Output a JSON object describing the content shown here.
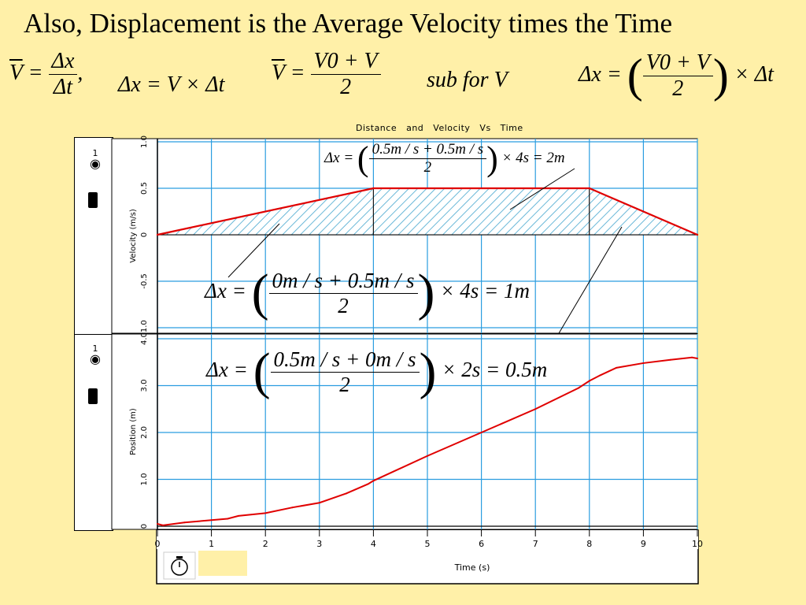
{
  "title": "Also, Displacement is the Average Velocity times the Time",
  "formulas": {
    "f1_lhs": "V",
    "f1_num": "Δx",
    "f1_den": "Δt",
    "f2": "Δx = V × Δt",
    "f3_lhs": "V",
    "f3_num": "V0 + V",
    "f3_den": "2",
    "f4": "sub for V",
    "f5_lhs": "Δx =",
    "f5_num": "V0 + V",
    "f5_den": "2",
    "f5_tail": "× Δt"
  },
  "chart_title": "Distance and Velocity Vs Time",
  "annotations": {
    "a1_lhs": "Δx =",
    "a1_num": "0.5m / s + 0.5m / s",
    "a1_den": "2",
    "a1_tail": "× 4s = 2m",
    "a2_lhs": "Δx =",
    "a2_num": "0m / s + 0.5m / s",
    "a2_den": "2",
    "a2_tail": "× 4s = 1m",
    "a3_lhs": "Δx =",
    "a3_num": "0.5m / s + 0m / s",
    "a3_den": "2",
    "a3_tail": "× 2s = 0.5m"
  },
  "sensor_number": "1",
  "chart_data": [
    {
      "type": "line",
      "ylabel": "Velocity (m/s)",
      "xlim": [
        0,
        10
      ],
      "ylim": [
        -1.0,
        1.0
      ],
      "y_ticks": [
        "1.0",
        "0.5",
        "0",
        "-0.5",
        "-1.0"
      ],
      "series": [
        {
          "x": [
            0,
            4,
            8,
            10
          ],
          "y": [
            0,
            0.5,
            0.5,
            0
          ],
          "color": "#e00000"
        }
      ],
      "shaded_regions": [
        [
          0,
          4
        ],
        [
          4,
          8
        ],
        [
          8,
          10
        ]
      ]
    },
    {
      "type": "line",
      "ylabel": "Position (m)",
      "xlabel": "Time (s)",
      "xlim": [
        0,
        10
      ],
      "ylim": [
        0,
        4.0
      ],
      "x_ticks": [
        "0",
        "1",
        "2",
        "3",
        "4",
        "5",
        "6",
        "7",
        "8",
        "9",
        "10"
      ],
      "y_ticks": [
        "4.0",
        "3.0",
        "2.0",
        "1.0",
        "0"
      ],
      "series": [
        {
          "x": [
            0,
            0.1,
            0.5,
            1.0,
            1.3,
            1.5,
            2.0,
            2.5,
            3.0,
            3.5,
            3.9,
            4.0,
            5.0,
            6.0,
            7.0,
            7.8,
            8.0,
            8.2,
            8.5,
            9.0,
            9.5,
            9.9,
            10.0
          ],
          "y": [
            0.05,
            0.02,
            0.08,
            0.13,
            0.16,
            0.22,
            0.28,
            0.4,
            0.5,
            0.7,
            0.9,
            0.97,
            1.5,
            2.0,
            2.5,
            2.95,
            3.1,
            3.22,
            3.38,
            3.48,
            3.55,
            3.6,
            3.58
          ],
          "color": "#e00000"
        }
      ]
    }
  ]
}
